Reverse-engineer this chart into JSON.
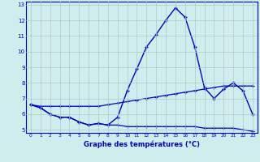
{
  "hours": [
    0,
    1,
    2,
    3,
    4,
    5,
    6,
    7,
    8,
    9,
    10,
    11,
    12,
    13,
    14,
    15,
    16,
    17,
    18,
    19,
    20,
    21,
    22,
    23
  ],
  "temp_actual": [
    6.6,
    6.4,
    6.0,
    5.8,
    5.8,
    5.5,
    5.3,
    5.4,
    5.3,
    5.8,
    7.5,
    8.9,
    10.3,
    11.1,
    12.0,
    12.8,
    12.2,
    10.3,
    7.7,
    7.0,
    7.6,
    8.0,
    7.5,
    6.0
  ],
  "temp_upper": [
    6.6,
    6.5,
    6.5,
    6.5,
    6.5,
    6.5,
    6.5,
    6.5,
    6.6,
    6.7,
    6.8,
    6.9,
    7.0,
    7.1,
    7.2,
    7.3,
    7.4,
    7.5,
    7.6,
    7.7,
    7.8,
    7.8,
    7.8,
    7.8
  ],
  "temp_lower": [
    6.6,
    6.4,
    6.0,
    5.8,
    5.8,
    5.5,
    5.3,
    5.4,
    5.3,
    5.3,
    5.2,
    5.2,
    5.2,
    5.2,
    5.2,
    5.2,
    5.2,
    5.2,
    5.1,
    5.1,
    5.1,
    5.1,
    5.0,
    4.9
  ],
  "line_color": "#0000cc",
  "bg_color": "#d0ecec",
  "grid_color": "#b0c8c8",
  "xlabel": "Graphe des températures (°C)",
  "ylim": [
    5,
    13
  ],
  "xlim": [
    0,
    23
  ],
  "yticks": [
    5,
    6,
    7,
    8,
    9,
    10,
    11,
    12,
    13
  ]
}
